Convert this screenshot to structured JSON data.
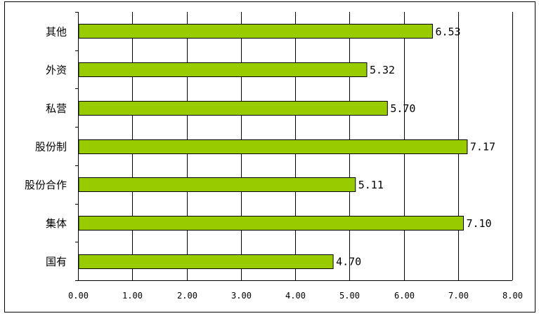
{
  "chart_data": {
    "type": "bar",
    "orientation": "horizontal",
    "categories": [
      "国有",
      "集体",
      "股份合作",
      "股份制",
      "私营",
      "外资",
      "其他"
    ],
    "values": [
      4.7,
      7.1,
      5.11,
      7.17,
      5.7,
      5.32,
      6.53
    ],
    "value_labels": [
      "4.70",
      "7.10",
      "5.11",
      "7.17",
      "5.70",
      "5.32",
      "6.53"
    ],
    "xlim": [
      0,
      8
    ],
    "x_ticks": [
      0,
      1,
      2,
      3,
      4,
      5,
      6,
      7,
      8
    ],
    "x_tick_labels": [
      "0.00",
      "1.00",
      "2.00",
      "3.00",
      "4.00",
      "5.00",
      "6.00",
      "7.00",
      "8.00"
    ],
    "grid": "vertical",
    "legend": "none",
    "title": "",
    "xlabel": "",
    "ylabel": "",
    "colors": {
      "bar_fill": "#99cc00",
      "bar_stroke": "#000000",
      "grid": "#000000",
      "frame": "#000000"
    }
  }
}
